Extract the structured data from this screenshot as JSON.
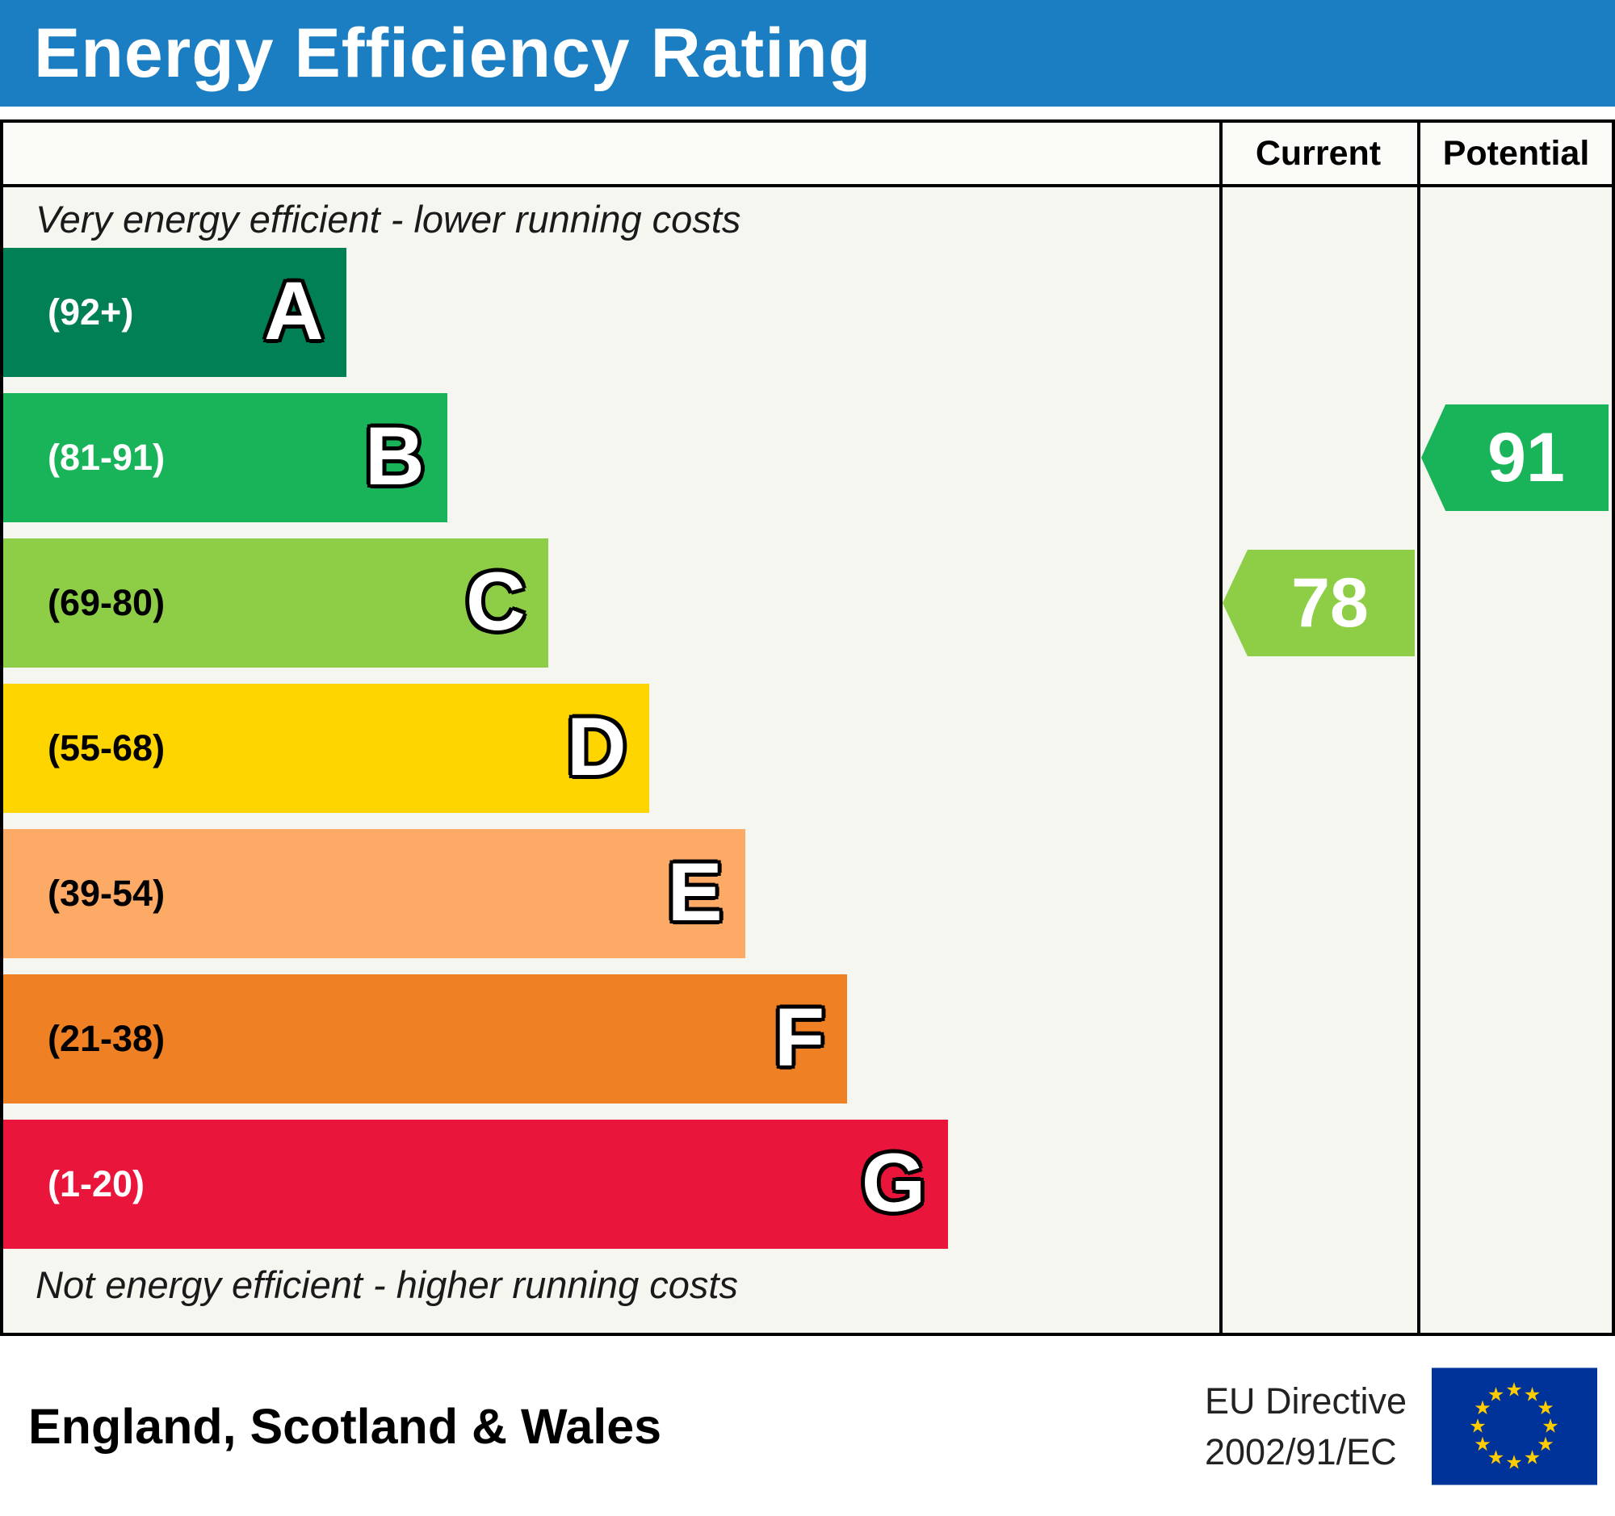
{
  "title": "Energy Efficiency Rating",
  "colors": {
    "header_bar": "#1b7ec2",
    "eu_flag_blue": "#003399",
    "eu_flag_star": "#ffcc00"
  },
  "columns": {
    "current": "Current",
    "potential": "Potential"
  },
  "notes": {
    "top": "Very energy efficient - lower running costs",
    "bottom": "Not energy efficient - higher running costs"
  },
  "footer": {
    "region": "England, Scotland & Wales",
    "directive_line1": "EU Directive",
    "directive_line2": "2002/91/EC",
    "flag_icon": "eu-flag"
  },
  "chart_data": {
    "type": "bar",
    "title": "Energy Efficiency Rating",
    "value_range": [
      1,
      100
    ],
    "bands": [
      {
        "letter": "A",
        "range": "(92+)",
        "min": 92,
        "max": 100,
        "color": "#008054",
        "label_color": "#ffffff",
        "width_pct": 28.2
      },
      {
        "letter": "B",
        "range": "(81-91)",
        "min": 81,
        "max": 91,
        "color": "#19b459",
        "label_color": "#ffffff",
        "width_pct": 36.5
      },
      {
        "letter": "C",
        "range": "(69-80)",
        "min": 69,
        "max": 80,
        "color": "#8dce46",
        "label_color": "#000000",
        "width_pct": 44.8
      },
      {
        "letter": "D",
        "range": "(55-68)",
        "min": 55,
        "max": 68,
        "color": "#ffd500",
        "label_color": "#000000",
        "width_pct": 53.1
      },
      {
        "letter": "E",
        "range": "(39-54)",
        "min": 39,
        "max": 54,
        "color": "#fcaa65",
        "label_color": "#000000",
        "width_pct": 61.0
      },
      {
        "letter": "F",
        "range": "(21-38)",
        "min": 21,
        "max": 38,
        "color": "#ef8023",
        "label_color": "#000000",
        "width_pct": 69.4
      },
      {
        "letter": "G",
        "range": "(1-20)",
        "min": 1,
        "max": 20,
        "color": "#e9153b",
        "label_color": "#ffffff",
        "width_pct": 77.7
      }
    ],
    "current": {
      "value": 78,
      "band": "C",
      "color": "#8dce46"
    },
    "potential": {
      "value": 91,
      "band": "B",
      "color": "#19b459"
    }
  }
}
